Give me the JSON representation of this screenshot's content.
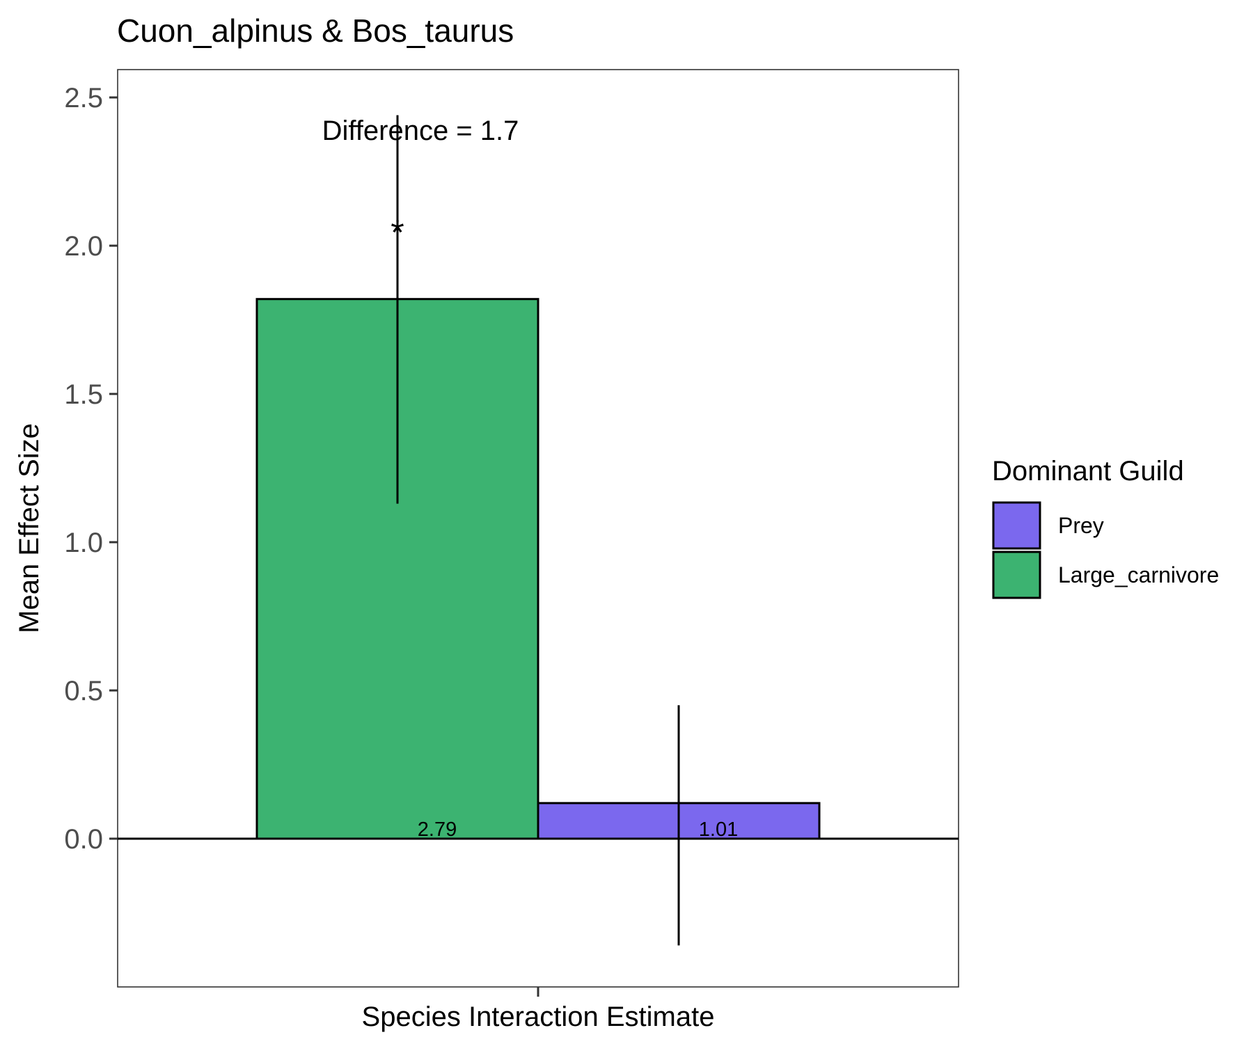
{
  "chart_data": {
    "type": "bar",
    "title": "Cuon_alpinus & Bos_taurus",
    "xlabel": "Species Interaction Estimate",
    "ylabel": "Mean Effect Size",
    "categories": [
      "Species Interaction Estimate"
    ],
    "ylim": [
      -0.5,
      2.6
    ],
    "yticks": [
      0.0,
      0.5,
      1.0,
      1.5,
      2.0,
      2.5
    ],
    "ytick_labels": [
      "0.0",
      "0.5",
      "1.0",
      "1.5",
      "2.0",
      "2.5"
    ],
    "grid": false,
    "series": [
      {
        "name": "Large_carnivore",
        "color": "#3CB371",
        "values": [
          1.82
        ],
        "error_low": [
          1.13
        ],
        "error_high": [
          2.44
        ],
        "bar_label": "2.79",
        "significance_mark": "*",
        "significance_y": 2.07
      },
      {
        "name": "Prey",
        "color": "#7B68EE",
        "values": [
          0.12
        ],
        "error_low": [
          -0.36
        ],
        "error_high": [
          0.45
        ],
        "bar_label": "1.01"
      }
    ],
    "annotation": {
      "text": "Difference = 1.7",
      "y": 2.39
    },
    "legend": {
      "title": "Dominant Guild",
      "position": "right",
      "order": [
        "Prey",
        "Large_carnivore"
      ]
    }
  }
}
